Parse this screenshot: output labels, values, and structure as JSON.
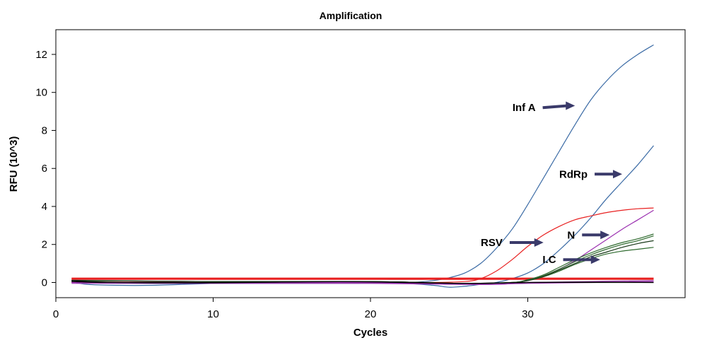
{
  "chart_data": {
    "type": "line",
    "title": "Amplification",
    "xlabel": "Cycles",
    "ylabel": "RFU (10^3)",
    "xlim": [
      0,
      40
    ],
    "ylim": [
      -0.8,
      13.3
    ],
    "xticks": [
      0,
      10,
      20,
      30
    ],
    "yticks": [
      0,
      2,
      4,
      6,
      8,
      10,
      12
    ],
    "grid": false,
    "legend": "none",
    "series": [
      {
        "color": "#3b6ba5",
        "x": [
          1,
          2,
          4,
          6,
          8,
          10,
          12,
          14,
          16,
          18,
          20,
          22,
          23,
          24,
          25,
          26,
          27,
          28,
          29,
          30,
          31,
          32,
          33,
          34,
          35,
          36,
          37,
          38
        ],
        "y": [
          0.05,
          -0.1,
          -0.15,
          -0.15,
          -0.1,
          -0.05,
          -0.02,
          0,
          0,
          0,
          0,
          0,
          0.02,
          0.1,
          0.25,
          0.5,
          1.0,
          1.8,
          2.8,
          4.1,
          5.5,
          6.9,
          8.3,
          9.6,
          10.6,
          11.4,
          12.0,
          12.5
        ]
      },
      {
        "color": "#3b6ba5",
        "x": [
          1,
          3,
          6,
          10,
          14,
          18,
          22,
          24,
          25,
          26,
          27,
          28,
          29,
          30,
          31,
          32,
          33,
          34,
          35,
          36,
          37,
          38
        ],
        "y": [
          0.05,
          0,
          -0.05,
          -0.05,
          -0.05,
          -0.05,
          -0.05,
          -0.15,
          -0.25,
          -0.2,
          -0.1,
          0,
          0.2,
          0.5,
          1.0,
          1.7,
          2.5,
          3.4,
          4.4,
          5.3,
          6.2,
          7.2
        ]
      },
      {
        "color": "#e82020",
        "x": [
          1,
          5,
          10,
          15,
          20,
          24,
          26,
          27,
          28,
          29,
          30,
          31,
          32,
          33,
          34,
          35,
          36,
          37,
          38
        ],
        "y": [
          0.02,
          0.02,
          0,
          0,
          0,
          0,
          0.05,
          0.2,
          0.6,
          1.2,
          1.9,
          2.5,
          2.95,
          3.3,
          3.5,
          3.68,
          3.8,
          3.88,
          3.92
        ]
      },
      {
        "color": "#e82020",
        "x": [
          1,
          38
        ],
        "y": [
          0.22,
          0.22
        ]
      },
      {
        "color": "#e82020",
        "x": [
          1,
          38
        ],
        "y": [
          0.18,
          0.18
        ]
      },
      {
        "color": "#9b30b0",
        "x": [
          1,
          10,
          20,
          26,
          28,
          29,
          30,
          31,
          32,
          33,
          34,
          35,
          36,
          37,
          38
        ],
        "y": [
          0,
          0,
          0,
          -0.1,
          -0.1,
          -0.05,
          0.1,
          0.35,
          0.7,
          1.15,
          1.7,
          2.25,
          2.8,
          3.3,
          3.8
        ]
      },
      {
        "color": "#9b30b0",
        "x": [
          1,
          10,
          20,
          26,
          30,
          34,
          38
        ],
        "y": [
          -0.05,
          -0.05,
          -0.05,
          -0.1,
          -0.05,
          0,
          0.05
        ]
      },
      {
        "color": "#9b30b0",
        "x": [
          1,
          10,
          20,
          26,
          30,
          34,
          38
        ],
        "y": [
          0,
          0,
          0,
          -0.05,
          0,
          0.05,
          0.1
        ]
      },
      {
        "color": "#2f6b2f",
        "x": [
          1,
          10,
          20,
          26,
          29,
          30,
          31,
          32,
          33,
          34,
          35,
          36,
          37,
          38
        ],
        "y": [
          0.1,
          0.05,
          0.05,
          -0.05,
          0,
          0.15,
          0.4,
          0.8,
          1.2,
          1.55,
          1.85,
          2.1,
          2.3,
          2.55
        ]
      },
      {
        "color": "#2f6b2f",
        "x": [
          1,
          10,
          20,
          26,
          29,
          30,
          31,
          32,
          33,
          34,
          35,
          36,
          37,
          38
        ],
        "y": [
          0.1,
          0.05,
          0.05,
          -0.05,
          0,
          0.12,
          0.35,
          0.7,
          1.1,
          1.45,
          1.75,
          2.0,
          2.2,
          2.45
        ]
      },
      {
        "color": "#2f6b2f",
        "x": [
          1,
          10,
          20,
          26,
          29,
          30,
          31,
          32,
          33,
          34,
          35,
          36,
          37,
          38
        ],
        "y": [
          0.1,
          0.05,
          0.05,
          -0.05,
          0,
          0.1,
          0.3,
          0.6,
          0.95,
          1.25,
          1.5,
          1.65,
          1.75,
          1.85
        ]
      },
      {
        "color": "#1a3a1a",
        "x": [
          1,
          10,
          20,
          26,
          29,
          30,
          31,
          32,
          33,
          34,
          35,
          36,
          37,
          38
        ],
        "y": [
          0.12,
          0.05,
          0.05,
          -0.05,
          0,
          0.1,
          0.32,
          0.65,
          1.0,
          1.35,
          1.6,
          1.85,
          2.05,
          2.2
        ]
      },
      {
        "color": "#000000",
        "x": [
          1,
          2,
          4,
          6,
          8,
          10,
          14,
          18,
          22,
          26,
          30,
          34,
          38
        ],
        "y": [
          0.1,
          0.05,
          0,
          -0.02,
          -0.02,
          -0.02,
          0.02,
          0.05,
          0,
          -0.05,
          0,
          0.02,
          0
        ]
      },
      {
        "color": "#000000",
        "x": [
          1,
          3,
          6,
          10,
          14,
          18,
          22,
          26,
          30,
          34,
          38
        ],
        "y": [
          0.05,
          0,
          0,
          0,
          0.02,
          0.04,
          0.02,
          -0.05,
          0,
          0,
          0
        ]
      }
    ],
    "annotations": [
      {
        "text": "Inf A",
        "x": 30.5,
        "y": 9.2,
        "arrow_to": [
          33,
          9.3
        ]
      },
      {
        "text": "RdRp",
        "x": 33.8,
        "y": 5.7,
        "arrow_to": [
          36,
          5.7
        ]
      },
      {
        "text": "RSV",
        "x": 28.4,
        "y": 2.1,
        "arrow_to": [
          31,
          2.1
        ]
      },
      {
        "text": "N",
        "x": 33.0,
        "y": 2.5,
        "arrow_to": [
          35.2,
          2.5
        ]
      },
      {
        "text": "I.C",
        "x": 31.8,
        "y": 1.2,
        "arrow_to": [
          34.6,
          1.2
        ]
      }
    ],
    "colors": {
      "arrow": "#3a3a6a",
      "axis": "#000000"
    }
  }
}
